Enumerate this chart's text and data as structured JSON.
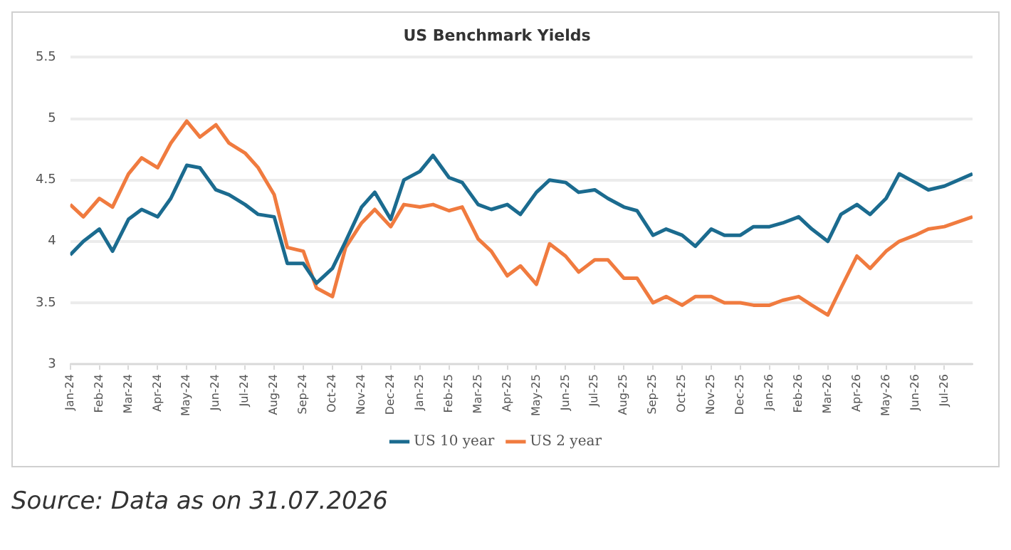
{
  "chart_data": {
    "type": "line",
    "title": "US Benchmark Yields",
    "x": [
      "2024-01-01",
      "2024-01-15",
      "2024-02-01",
      "2024-02-15",
      "2024-03-01",
      "2024-03-15",
      "2024-04-01",
      "2024-04-15",
      "2024-05-01",
      "2024-05-15",
      "2024-06-01",
      "2024-06-15",
      "2024-07-01",
      "2024-07-15",
      "2024-08-01",
      "2024-08-15",
      "2024-09-01",
      "2024-09-15",
      "2024-10-01",
      "2024-10-15",
      "2024-11-01",
      "2024-11-15",
      "2024-12-01",
      "2024-12-15",
      "2025-01-01",
      "2025-01-15",
      "2025-02-01",
      "2025-02-15",
      "2025-03-01",
      "2025-03-15",
      "2025-04-01",
      "2025-04-15",
      "2025-05-01",
      "2025-05-15",
      "2025-06-01",
      "2025-06-15",
      "2025-07-01",
      "2025-07-15",
      "2025-08-01",
      "2025-08-15",
      "2025-09-01",
      "2025-09-15",
      "2025-10-01",
      "2025-10-15",
      "2025-11-01",
      "2025-11-15",
      "2025-12-01",
      "2025-12-15",
      "2026-01-01",
      "2026-01-15",
      "2026-02-01",
      "2026-02-15",
      "2026-03-01",
      "2026-03-15",
      "2026-04-01",
      "2026-04-15",
      "2026-05-01",
      "2026-05-15",
      "2026-06-01",
      "2026-06-15",
      "2026-07-01",
      "2026-07-31"
    ],
    "series": [
      {
        "name": "US 10 year",
        "color": "#1b6b8f",
        "values": [
          3.89,
          4.0,
          4.1,
          3.92,
          4.18,
          4.26,
          4.2,
          4.35,
          4.62,
          4.6,
          4.42,
          4.38,
          4.3,
          4.22,
          4.2,
          3.82,
          3.82,
          3.66,
          3.78,
          4.0,
          4.28,
          4.4,
          4.18,
          4.5,
          4.57,
          4.7,
          4.52,
          4.48,
          4.3,
          4.26,
          4.3,
          4.22,
          4.4,
          4.5,
          4.48,
          4.4,
          4.42,
          4.35,
          4.28,
          4.25,
          4.05,
          4.1,
          4.05,
          3.96,
          4.1,
          4.05,
          4.05,
          4.12,
          4.12,
          4.15,
          4.2,
          4.1,
          4.0,
          4.22,
          4.3,
          4.22,
          4.35,
          4.55,
          4.48,
          4.42,
          4.45,
          4.55
        ]
      },
      {
        "name": "US 2 year",
        "color": "#f07b3f",
        "values": [
          4.3,
          4.2,
          4.35,
          4.28,
          4.55,
          4.68,
          4.6,
          4.8,
          4.98,
          4.85,
          4.95,
          4.8,
          4.72,
          4.6,
          4.38,
          3.95,
          3.92,
          3.62,
          3.55,
          3.95,
          4.15,
          4.26,
          4.12,
          4.3,
          4.28,
          4.3,
          4.25,
          4.28,
          4.02,
          3.92,
          3.72,
          3.8,
          3.65,
          3.98,
          3.88,
          3.75,
          3.85,
          3.85,
          3.7,
          3.7,
          3.5,
          3.55,
          3.48,
          3.55,
          3.55,
          3.5,
          3.5,
          3.48,
          3.48,
          3.52,
          3.55,
          3.48,
          3.4,
          3.62,
          3.88,
          3.78,
          3.92,
          4.0,
          4.05,
          4.1,
          4.12,
          4.2
        ]
      }
    ],
    "xlim": [
      "2024-01-01",
      "2026-07-31"
    ],
    "xticks": [
      {
        "value": "2024-01",
        "label": "Jan-24"
      },
      {
        "value": "2024-02",
        "label": "Feb-24"
      },
      {
        "value": "2024-03",
        "label": "Mar-24"
      },
      {
        "value": "2024-04",
        "label": "Apr-24"
      },
      {
        "value": "2024-05",
        "label": "May-24"
      },
      {
        "value": "2024-06",
        "label": "Jun-24"
      },
      {
        "value": "2024-07",
        "label": "Jul-24"
      },
      {
        "value": "2024-08",
        "label": "Aug-24"
      },
      {
        "value": "2024-09",
        "label": "Sep-24"
      },
      {
        "value": "2024-10",
        "label": "Oct-24"
      },
      {
        "value": "2024-11",
        "label": "Nov-24"
      },
      {
        "value": "2024-12",
        "label": "Dec-24"
      },
      {
        "value": "2025-01",
        "label": "Jan-25"
      },
      {
        "value": "2025-02",
        "label": "Feb-25"
      },
      {
        "value": "2025-03",
        "label": "Mar-25"
      },
      {
        "value": "2025-04",
        "label": "Apr-25"
      },
      {
        "value": "2025-05",
        "label": "May-25"
      },
      {
        "value": "2025-06",
        "label": "Jun-25"
      },
      {
        "value": "2025-07",
        "label": "Jul-25"
      },
      {
        "value": "2025-08",
        "label": "Aug-25"
      },
      {
        "value": "2025-09",
        "label": "Sep-25"
      },
      {
        "value": "2025-10",
        "label": "Oct-25"
      },
      {
        "value": "2025-11",
        "label": "Nov-25"
      },
      {
        "value": "2025-12",
        "label": "Dec-25"
      },
      {
        "value": "2026-01",
        "label": "Jan-26"
      },
      {
        "value": "2026-02",
        "label": "Feb-26"
      },
      {
        "value": "2026-03",
        "label": "Mar-26"
      },
      {
        "value": "2026-04",
        "label": "Apr-26"
      },
      {
        "value": "2026-05",
        "label": "May-26"
      },
      {
        "value": "2026-06",
        "label": "Jun-26"
      },
      {
        "value": "2026-07",
        "label": "Jul-26"
      }
    ],
    "ylim": [
      3,
      5.5
    ],
    "yticks": [
      3,
      3.5,
      4,
      4.5,
      5,
      5.5
    ],
    "grid": "y",
    "legend": "bottom",
    "annotations": [
      "Source: Data as on 31.07.2026"
    ]
  }
}
